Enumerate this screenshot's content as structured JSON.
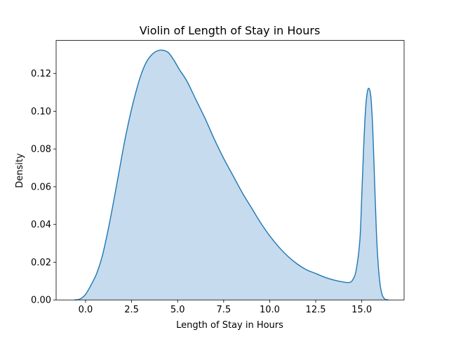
{
  "chart_data": {
    "type": "area",
    "title": "Violin of Length of Stay in Hours",
    "xlabel": "Length of Stay in Hours",
    "ylabel": "Density",
    "xlim": [
      -1.6,
      17.3
    ],
    "ylim": [
      0,
      0.1375
    ],
    "xticks": [
      0.0,
      2.5,
      5.0,
      7.5,
      10.0,
      12.5,
      15.0
    ],
    "xtick_labels": [
      "0.0",
      "2.5",
      "5.0",
      "7.5",
      "10.0",
      "12.5",
      "15.0"
    ],
    "yticks": [
      0.0,
      0.02,
      0.04,
      0.06,
      0.08,
      0.1,
      0.12
    ],
    "ytick_labels": [
      "0.00",
      "0.02",
      "0.04",
      "0.06",
      "0.08",
      "0.10",
      "0.12"
    ],
    "grid": false,
    "legend": "none",
    "line_color": "#1f77b4",
    "fill_color": "#c6dbed",
    "series": [
      {
        "x": [
          -0.6,
          -0.3,
          0.0,
          0.3,
          0.6,
          0.9,
          1.2,
          1.5,
          1.8,
          2.1,
          2.4,
          2.7,
          3.0,
          3.3,
          3.6,
          3.9,
          4.2,
          4.5,
          4.8,
          5.1,
          5.5,
          6.0,
          6.5,
          7.0,
          7.5,
          8.0,
          8.5,
          9.0,
          9.5,
          10.0,
          10.5,
          11.0,
          11.5,
          12.0,
          12.5,
          13.0,
          13.5,
          14.0,
          14.3,
          14.5,
          14.7,
          14.9,
          15.0,
          15.1,
          15.2,
          15.3,
          15.4,
          15.5,
          15.6,
          15.7,
          15.8,
          15.9,
          16.0,
          16.1,
          16.2,
          16.3,
          16.45
        ],
        "y": [
          0.0,
          0.0005,
          0.003,
          0.008,
          0.014,
          0.023,
          0.036,
          0.051,
          0.067,
          0.083,
          0.097,
          0.109,
          0.119,
          0.126,
          0.13,
          0.132,
          0.1323,
          0.131,
          0.127,
          0.122,
          0.116,
          0.106,
          0.096,
          0.085,
          0.075,
          0.066,
          0.057,
          0.049,
          0.041,
          0.034,
          0.028,
          0.023,
          0.019,
          0.016,
          0.014,
          0.012,
          0.0105,
          0.0095,
          0.0092,
          0.0105,
          0.016,
          0.032,
          0.055,
          0.08,
          0.1,
          0.11,
          0.112,
          0.107,
          0.09,
          0.062,
          0.035,
          0.018,
          0.008,
          0.003,
          0.001,
          0.0002,
          0.0
        ]
      }
    ]
  }
}
